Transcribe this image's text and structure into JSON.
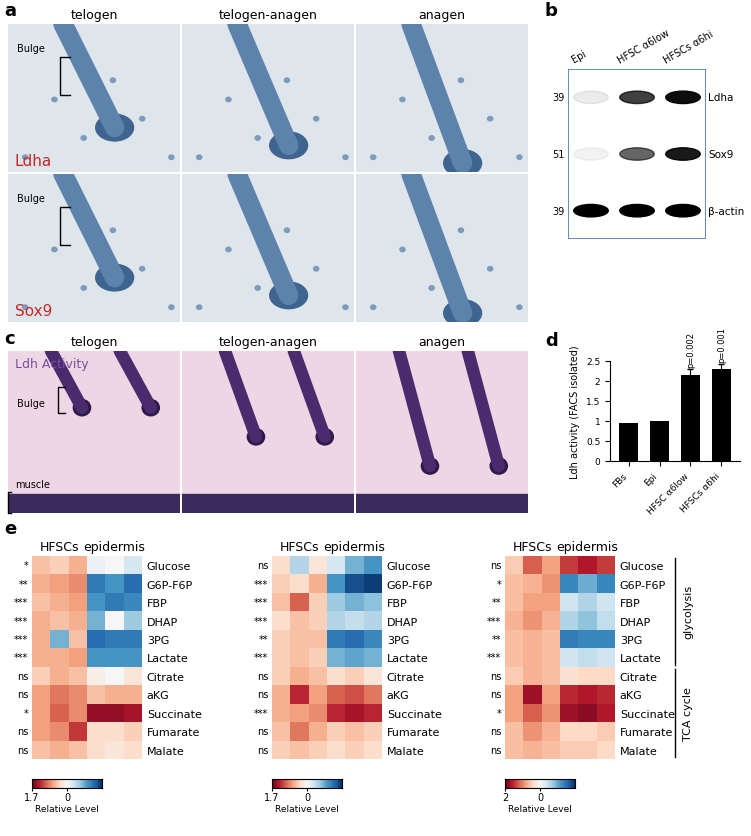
{
  "images_a": {
    "panel": "a",
    "columns": [
      "telogen",
      "telogen-anagen",
      "anagen"
    ],
    "rows": [
      {
        "label": "Ldha",
        "color": "#c62828"
      },
      {
        "label": "Sox9",
        "color": "#c62828"
      }
    ],
    "annotation": "Bulge"
  },
  "blot_b": {
    "panel": "b",
    "lanes": [
      "Epi",
      "HFSC α6low",
      "HFSCs α6hi"
    ],
    "rows": [
      {
        "label": "Ldha",
        "marker_kda": 39,
        "intensity": [
          0.08,
          0.75,
          0.95
        ]
      },
      {
        "label": "Sox9",
        "marker_kda": 51,
        "intensity": [
          0.05,
          0.6,
          0.9
        ]
      },
      {
        "label": "β-actin",
        "marker_kda": 39,
        "intensity": [
          1,
          1,
          1
        ]
      }
    ]
  },
  "images_c": {
    "panel": "c",
    "columns": [
      "telogen",
      "telogen-anagen",
      "anagen"
    ],
    "label": "Ldh Activity",
    "annotations": [
      "Bulge",
      "muscle"
    ]
  },
  "chart_data": [
    {
      "type": "bar",
      "panel": "d",
      "categories": [
        "FBs",
        "Epi",
        "HFSC α6low",
        "HFSCs α6hi"
      ],
      "values": [
        0.95,
        1.0,
        2.15,
        2.3
      ],
      "errors": [
        null,
        null,
        0.15,
        0.12
      ],
      "annotations": [
        null,
        null,
        "p=0.002",
        "p=0.001"
      ],
      "y_label": "Ldh activity (FACS isolated)",
      "ylim": [
        0,
        2.5
      ],
      "yticks": [
        0,
        0.5,
        1,
        1.5,
        2,
        2.5
      ],
      "color": "#000000"
    },
    {
      "type": "heatmap",
      "panel": "e",
      "rows": [
        "Glucose",
        "G6P-F6P",
        "FBP",
        "DHAP",
        "3PG",
        "Lactate",
        "Citrate",
        "aKG",
        "Succinate",
        "Fumarate",
        "Malate"
      ],
      "column_groups": [
        {
          "label": "HFSCs",
          "count": 3
        },
        {
          "label": "epidermis",
          "count": 3
        }
      ],
      "significance": [
        "*",
        "**",
        "***",
        "***",
        "***",
        "***",
        "ns",
        "ns",
        "*",
        "ns",
        "ns"
      ],
      "cells": [
        [
          0.5,
          0.4,
          0.6,
          -0.1,
          0.0,
          -0.3
        ],
        [
          0.6,
          0.7,
          0.8,
          -1.2,
          -1.0,
          -1.3
        ],
        [
          0.5,
          0.6,
          0.7,
          -1.0,
          -1.2,
          -1.1
        ],
        [
          0.6,
          0.5,
          0.6,
          -0.8,
          0.0,
          -0.6
        ],
        [
          0.6,
          -0.8,
          0.5,
          -1.3,
          -1.2,
          -1.2
        ],
        [
          0.6,
          0.6,
          0.7,
          -1.0,
          -1.0,
          -1.0
        ],
        [
          0.4,
          0.6,
          0.5,
          0.1,
          0.0,
          0.2
        ],
        [
          0.7,
          0.9,
          0.8,
          0.5,
          0.6,
          0.6
        ],
        [
          0.7,
          1.0,
          0.8,
          1.5,
          1.5,
          1.4
        ],
        [
          0.7,
          0.8,
          1.2,
          0.3,
          0.3,
          0.4
        ],
        [
          0.5,
          0.6,
          0.5,
          0.3,
          0.2,
          0.3
        ]
      ],
      "color_range": [
        -1.7,
        1.7
      ],
      "colorbar_ticks": [
        1.7,
        0
      ],
      "colorbar_label": "Relative Level"
    },
    {
      "type": "heatmap",
      "rows": [
        "Glucose",
        "G6P-F6P",
        "FBP",
        "DHAP",
        "3PG",
        "Lactate",
        "Citrate",
        "aKG",
        "Succinate",
        "Fumarate",
        "Malate"
      ],
      "column_groups": [
        {
          "label": "HFSCs",
          "count": 3
        },
        {
          "label": "epidermis",
          "count": 3
        }
      ],
      "significance": [
        "ns",
        "***",
        "***",
        "***",
        "**",
        "***",
        "ns",
        "ns",
        "***",
        "ns",
        "ns"
      ],
      "cells": [
        [
          0.3,
          -0.5,
          0.2,
          -0.3,
          -0.8,
          -1.0
        ],
        [
          0.4,
          0.3,
          0.6,
          -1.0,
          -1.5,
          -1.6
        ],
        [
          0.5,
          1.0,
          0.4,
          -0.6,
          -0.8,
          -0.7
        ],
        [
          0.3,
          0.5,
          0.4,
          -0.5,
          -0.4,
          -0.5
        ],
        [
          0.4,
          0.5,
          0.5,
          -1.2,
          -1.3,
          -1.1
        ],
        [
          0.4,
          0.5,
          0.4,
          -0.8,
          -0.9,
          -0.8
        ],
        [
          0.4,
          0.6,
          0.5,
          0.3,
          0.4,
          0.2
        ],
        [
          0.6,
          1.3,
          0.7,
          1.0,
          1.1,
          0.9
        ],
        [
          0.6,
          0.7,
          0.8,
          1.3,
          1.4,
          1.3
        ],
        [
          0.5,
          0.9,
          0.6,
          0.4,
          0.5,
          0.4
        ],
        [
          0.4,
          0.5,
          0.4,
          0.3,
          0.4,
          0.3
        ]
      ],
      "color_range": [
        -1.7,
        1.7
      ],
      "colorbar_ticks": [
        1.7,
        0
      ],
      "colorbar_label": "Relative Level"
    },
    {
      "type": "heatmap",
      "rows": [
        "Glucose",
        "G6P-F6P",
        "FBP",
        "DHAP",
        "3PG",
        "Lactate",
        "Citrate",
        "aKG",
        "Succinate",
        "Fumarate",
        "Malate"
      ],
      "column_groups": [
        {
          "label": "HFSCs",
          "count": 3
        },
        {
          "label": "epidermis",
          "count": 3
        }
      ],
      "significance": [
        "ns",
        "*",
        "**",
        "***",
        "**",
        "***",
        "ns",
        "ns",
        "*",
        "ns",
        "ns"
      ],
      "cells": [
        [
          0.5,
          1.2,
          0.8,
          1.4,
          1.6,
          1.4
        ],
        [
          0.6,
          0.7,
          0.9,
          -1.3,
          -1.0,
          -1.3
        ],
        [
          0.6,
          0.8,
          0.8,
          -0.4,
          -0.6,
          -0.4
        ],
        [
          0.7,
          0.9,
          0.7,
          -0.6,
          -0.8,
          -0.5
        ],
        [
          0.6,
          0.7,
          0.6,
          -1.4,
          -1.3,
          -1.3
        ],
        [
          0.6,
          0.7,
          0.6,
          -0.4,
          -0.5,
          -0.4
        ],
        [
          0.5,
          0.7,
          0.6,
          0.3,
          0.4,
          0.4
        ],
        [
          0.8,
          1.7,
          0.8,
          1.5,
          1.6,
          1.5
        ],
        [
          0.8,
          1.2,
          0.9,
          1.7,
          1.8,
          1.6
        ],
        [
          0.6,
          0.9,
          0.7,
          0.4,
          0.4,
          0.5
        ],
        [
          0.6,
          0.7,
          0.6,
          0.5,
          0.5,
          0.4
        ]
      ],
      "color_range": [
        -2,
        2
      ],
      "colorbar_ticks": [
        2,
        0
      ],
      "colorbar_label": "Relative Level",
      "row_groups": [
        {
          "label": "glycolysis",
          "from": "Glucose",
          "to": "Lactate"
        },
        {
          "label": "TCA cycle",
          "from": "Citrate",
          "to": "Malate"
        }
      ]
    }
  ]
}
